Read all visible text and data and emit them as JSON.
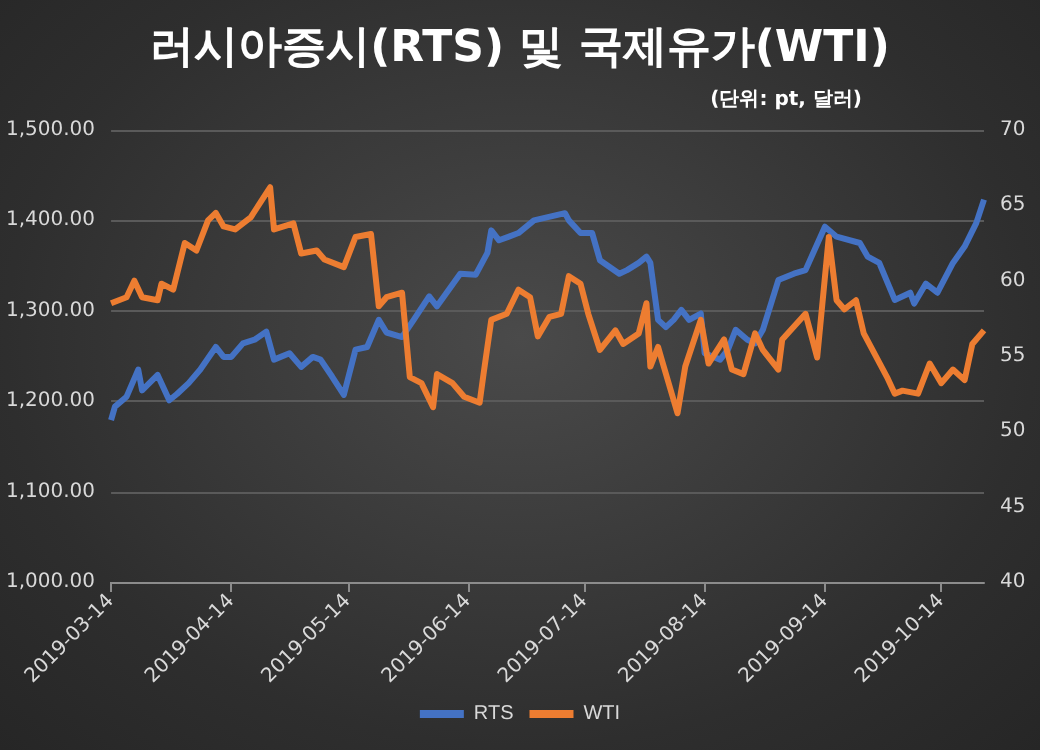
{
  "chart_data": {
    "type": "line",
    "title": "러시아증시(RTS) 및 국제유가(WTI)",
    "subtitle": "(단위: pt, 달러)",
    "xlim": [
      "2019-03-14",
      "2019-10-25"
    ],
    "xticks": [
      "2019-03-14",
      "2019-04-14",
      "2019-05-14",
      "2019-06-14",
      "2019-07-14",
      "2019-08-14",
      "2019-09-14",
      "2019-10-14"
    ],
    "ylim": [
      1000,
      1500
    ],
    "yticks": [
      {
        "value": 1000,
        "label": "1,000.00"
      },
      {
        "value": 1100,
        "label": "1,100.00"
      },
      {
        "value": 1200,
        "label": "1,200.00"
      },
      {
        "value": 1300,
        "label": "1,300.00"
      },
      {
        "value": 1400,
        "label": "1,400.00"
      },
      {
        "value": 1500,
        "label": "1,500.00"
      }
    ],
    "y2lim": [
      40,
      70
    ],
    "y2ticks": [
      40,
      45,
      50,
      55,
      60,
      65,
      70
    ],
    "grid": "y",
    "legend": "bottom",
    "marker": "none",
    "line_style": "solid",
    "series": [
      {
        "name": "RTS",
        "color": "#4472c4",
        "x": [
          "2019-03-14",
          "2019-03-15",
          "2019-03-18",
          "2019-03-21",
          "2019-03-22",
          "2019-03-26",
          "2019-03-29",
          "2019-03-31",
          "2019-04-03",
          "2019-04-06",
          "2019-04-10",
          "2019-04-12",
          "2019-04-14",
          "2019-04-17",
          "2019-04-20",
          "2019-04-23",
          "2019-04-25",
          "2019-04-29",
          "2019-05-02",
          "2019-05-05",
          "2019-05-07",
          "2019-05-10",
          "2019-05-13",
          "2019-05-16",
          "2019-05-19",
          "2019-05-22",
          "2019-05-24",
          "2019-05-28",
          "2019-05-31",
          "2019-06-04",
          "2019-06-06",
          "2019-06-09",
          "2019-06-12",
          "2019-06-16",
          "2019-06-19",
          "2019-06-20",
          "2019-06-22",
          "2019-06-27",
          "2019-07-01",
          "2019-07-09",
          "2019-07-10",
          "2019-07-13",
          "2019-07-16",
          "2019-07-18",
          "2019-07-23",
          "2019-07-25",
          "2019-07-28",
          "2019-07-30",
          "2019-07-31",
          "2019-08-02",
          "2019-08-04",
          "2019-08-06",
          "2019-08-08",
          "2019-08-10",
          "2019-08-13",
          "2019-08-14",
          "2019-08-18",
          "2019-08-20",
          "2019-08-22",
          "2019-08-25",
          "2019-08-27",
          "2019-08-29",
          "2019-09-02",
          "2019-09-06",
          "2019-09-09",
          "2019-09-14",
          "2019-09-17",
          "2019-09-23",
          "2019-09-25",
          "2019-09-28",
          "2019-10-02",
          "2019-10-06",
          "2019-10-07",
          "2019-10-10",
          "2019-10-13",
          "2019-10-17",
          "2019-10-20",
          "2019-10-23",
          "2019-10-25"
        ],
        "values": [
          1179,
          1194,
          1205,
          1235,
          1212,
          1229,
          1201,
          1208,
          1220,
          1235,
          1260,
          1249,
          1249,
          1264,
          1268,
          1277,
          1246,
          1253,
          1238,
          1249,
          1246,
          1227,
          1207,
          1257,
          1260,
          1290,
          1276,
          1271,
          1290,
          1316,
          1305,
          1323,
          1341,
          1340,
          1364,
          1389,
          1378,
          1386,
          1400,
          1408,
          1400,
          1386,
          1386,
          1356,
          1341,
          1345,
          1353,
          1360,
          1353,
          1290,
          1282,
          1290,
          1301,
          1290,
          1297,
          1253,
          1246,
          1257,
          1279,
          1268,
          1264,
          1279,
          1334,
          1341,
          1345,
          1393,
          1382,
          1375,
          1360,
          1353,
          1312,
          1320,
          1308,
          1330,
          1320,
          1353,
          1371,
          1397,
          1423
        ]
      },
      {
        "name": "WTI",
        "color": "#ed7d31",
        "axis": "y2",
        "x": [
          "2019-03-14",
          "2019-03-18",
          "2019-03-20",
          "2019-03-22",
          "2019-03-26",
          "2019-03-27",
          "2019-03-30",
          "2019-04-02",
          "2019-04-05",
          "2019-04-08",
          "2019-04-10",
          "2019-04-12",
          "2019-04-15",
          "2019-04-19",
          "2019-04-24",
          "2019-04-25",
          "2019-04-30",
          "2019-05-02",
          "2019-05-06",
          "2019-05-08",
          "2019-05-13",
          "2019-05-16",
          "2019-05-20",
          "2019-05-22",
          "2019-05-24",
          "2019-05-28",
          "2019-05-30",
          "2019-06-02",
          "2019-06-05",
          "2019-06-06",
          "2019-06-10",
          "2019-06-13",
          "2019-06-17",
          "2019-06-18",
          "2019-06-20",
          "2019-06-24",
          "2019-06-27",
          "2019-06-30",
          "2019-07-02",
          "2019-07-05",
          "2019-07-08",
          "2019-07-10",
          "2019-07-13",
          "2019-07-15",
          "2019-07-18",
          "2019-07-22",
          "2019-07-24",
          "2019-07-28",
          "2019-07-30",
          "2019-07-31",
          "2019-08-02",
          "2019-08-03",
          "2019-08-07",
          "2019-08-09",
          "2019-08-13",
          "2019-08-15",
          "2019-08-19",
          "2019-08-21",
          "2019-08-24",
          "2019-08-27",
          "2019-08-29",
          "2019-09-02",
          "2019-09-03",
          "2019-09-09",
          "2019-09-12",
          "2019-09-15",
          "2019-09-17",
          "2019-09-19",
          "2019-09-22",
          "2019-09-24",
          "2019-09-30",
          "2019-10-02",
          "2019-10-04",
          "2019-10-08",
          "2019-10-11",
          "2019-10-14",
          "2019-10-17",
          "2019-10-20",
          "2019-10-22",
          "2019-10-25"
        ],
        "values": [
          58.5,
          58.9,
          60.0,
          58.9,
          58.7,
          59.8,
          59.4,
          62.5,
          62.0,
          64.0,
          64.5,
          63.6,
          63.4,
          64.2,
          66.2,
          63.4,
          63.8,
          61.8,
          62.0,
          61.4,
          60.9,
          62.9,
          63.1,
          58.3,
          58.9,
          59.2,
          53.6,
          53.2,
          51.6,
          53.8,
          53.2,
          52.3,
          51.9,
          53.8,
          57.4,
          57.8,
          59.4,
          58.9,
          56.3,
          57.6,
          57.8,
          60.3,
          59.8,
          57.8,
          55.4,
          56.7,
          55.8,
          56.5,
          58.5,
          54.3,
          55.6,
          54.7,
          51.2,
          54.3,
          57.4,
          54.5,
          56.1,
          54.1,
          53.8,
          56.5,
          55.4,
          54.1,
          56.1,
          57.8,
          54.9,
          62.9,
          58.7,
          58.1,
          58.7,
          56.5,
          53.6,
          52.5,
          52.7,
          52.5,
          54.5,
          53.2,
          54.1,
          53.4,
          55.8,
          56.7
        ]
      }
    ]
  }
}
